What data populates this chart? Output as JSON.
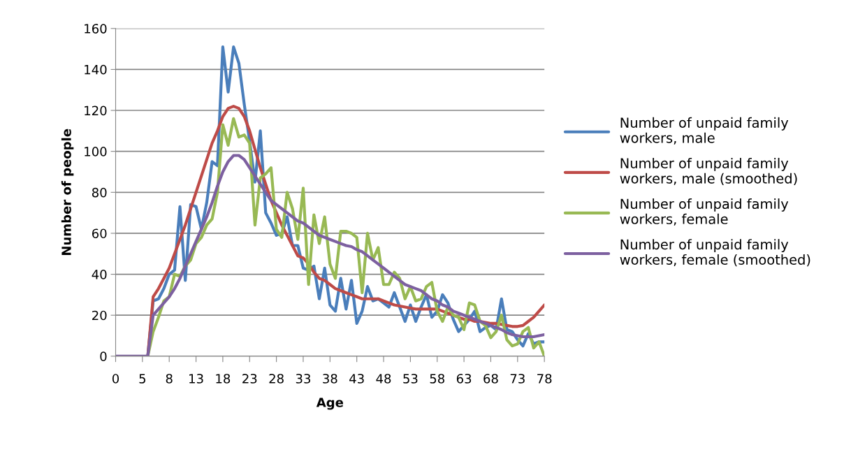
{
  "chart_data": {
    "type": "line",
    "xlabel": "Age",
    "ylabel": "Number of people",
    "categories": [
      "0",
      null,
      null,
      null,
      null,
      "5",
      null,
      null,
      null,
      null,
      "8",
      null,
      null,
      null,
      null,
      "13",
      null,
      null,
      null,
      null,
      "18",
      null,
      null,
      null,
      null,
      "23",
      null,
      null,
      null,
      null,
      "28",
      null,
      null,
      null,
      null,
      "33",
      null,
      null,
      null,
      null,
      "38",
      null,
      null,
      null,
      null,
      "43",
      null,
      null,
      null,
      null,
      "48",
      null,
      null,
      null,
      null,
      "53",
      null,
      null,
      null,
      null,
      "58",
      null,
      null,
      null,
      null,
      "63",
      null,
      null,
      null,
      null,
      "68",
      null,
      null,
      null,
      null,
      "73",
      null,
      null,
      null,
      null,
      "78"
    ],
    "series": [
      {
        "name": "Number of unpaid family\nworkers, male",
        "color": "#4a7ebb",
        "values": [
          null,
          null,
          null,
          null,
          null,
          null,
          0,
          27,
          28,
          33,
          40,
          42,
          73,
          37,
          74,
          73,
          62,
          75,
          95,
          93,
          151,
          129,
          151,
          143,
          123,
          105,
          85,
          110,
          70,
          65,
          59,
          60,
          68,
          54,
          54,
          43,
          42,
          44,
          28,
          43,
          25,
          22,
          38,
          23,
          37,
          16,
          22,
          34,
          27,
          28,
          26,
          24,
          31,
          24,
          17,
          25,
          17,
          24,
          30,
          19,
          22,
          30,
          26,
          18,
          12,
          15,
          18,
          22,
          12,
          14,
          15,
          13,
          28,
          13,
          12,
          8,
          5,
          11,
          6,
          7,
          7
        ]
      },
      {
        "name": "Number of unpaid family\nworkers, male (smoothed)",
        "color": "#be4b48",
        "values": [
          null,
          null,
          null,
          null,
          null,
          null,
          0,
          29,
          33,
          38,
          43,
          50,
          57,
          64,
          72,
          80,
          88,
          96,
          104,
          110,
          117,
          121,
          122,
          121,
          117,
          110,
          101,
          92,
          84,
          76,
          70,
          64,
          59,
          54,
          49,
          48,
          45,
          41,
          38,
          37,
          35,
          33,
          32,
          31,
          30,
          29,
          28,
          28,
          28,
          28,
          27,
          26,
          25,
          24.5,
          24,
          23.5,
          23,
          23,
          23,
          23,
          23,
          22,
          21,
          20,
          19,
          18,
          18,
          17,
          17,
          16.5,
          16,
          16,
          15.5,
          15,
          14.5,
          14.5,
          15,
          17,
          19,
          22,
          25
        ]
      },
      {
        "name": "Number of unpaid family\nworkers, female",
        "color": "#98b954",
        "values": [
          null,
          null,
          null,
          null,
          null,
          null,
          0,
          12,
          19,
          27,
          29,
          40,
          39,
          44,
          47,
          55,
          58,
          64,
          67,
          80,
          113,
          103,
          116,
          107,
          108,
          104,
          64,
          87,
          89,
          92,
          62,
          58,
          80,
          72,
          57,
          82,
          35,
          69,
          55,
          68,
          45,
          38,
          61,
          61,
          60,
          58,
          31,
          60,
          47,
          53,
          35,
          35,
          41,
          38,
          28,
          34,
          27,
          28,
          34,
          36,
          22,
          17,
          24,
          20,
          19,
          13,
          26,
          25,
          17,
          15,
          9,
          12,
          20,
          8,
          5,
          6,
          12,
          14,
          4,
          7,
          0
        ]
      },
      {
        "name": "Number of unpaid family\nworkers, female (smoothed)",
        "color": "#7d60a0",
        "values": [
          0,
          0,
          0,
          0,
          0,
          0,
          0,
          20,
          23,
          26,
          29,
          33,
          38,
          44,
          50,
          56,
          62,
          68,
          75,
          83,
          90,
          95,
          98,
          98,
          96,
          92,
          88,
          84,
          80,
          76,
          74,
          72,
          70,
          68,
          66,
          65,
          63,
          61,
          59,
          58,
          57,
          56,
          55,
          54,
          53.5,
          52,
          51,
          49,
          47,
          45,
          43,
          41,
          39,
          37,
          35,
          34,
          33,
          32,
          30,
          28,
          27,
          25,
          24,
          22,
          21,
          20,
          19,
          18,
          17,
          16,
          15,
          14,
          13,
          11.5,
          10.5,
          10,
          9.5,
          9.5,
          9.5,
          10,
          10.5
        ]
      }
    ],
    "ylim": [
      0,
      160
    ],
    "yticks": [
      0,
      20,
      40,
      60,
      80,
      100,
      120,
      140,
      160
    ],
    "grid": "y",
    "legend": "right",
    "marker": "none",
    "line_style": "solid"
  }
}
